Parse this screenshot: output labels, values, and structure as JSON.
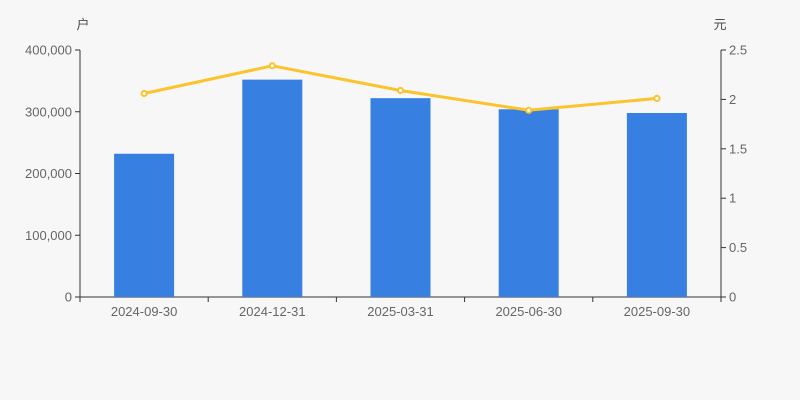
{
  "chart_data": {
    "type": "bar",
    "subtype": "dual-axis-bar-line",
    "categories": [
      "2024-09-30",
      "2024-12-31",
      "2025-03-31",
      "2025-06-30",
      "2025-09-30"
    ],
    "series": [
      {
        "name": "bar-series",
        "type": "bar",
        "axis": "left",
        "values": [
          232000,
          352000,
          322000,
          304000,
          298000
        ],
        "color": "#377fe1"
      },
      {
        "name": "line-series",
        "type": "line",
        "axis": "right",
        "values": [
          2.06,
          2.34,
          2.09,
          1.89,
          2.01
        ],
        "color": "#fbc32c",
        "marker": "hollow-circle",
        "marker_fill": "#ffffff"
      }
    ],
    "y_left": {
      "unit": "户",
      "min": 0,
      "max": 400000,
      "tick_labels": [
        "0",
        "100,000",
        "200,000",
        "300,000",
        "400,000"
      ]
    },
    "y_right": {
      "unit": "元",
      "min": 0,
      "max": 2.5,
      "tick_labels": [
        "0",
        "0.5",
        "1",
        "1.5",
        "2",
        "2.5"
      ]
    },
    "grid": false,
    "legend": null,
    "title": ""
  },
  "style": {
    "background": "#f7f7f7",
    "axis_color": "#333333",
    "tick_label_color": "#666666",
    "unit_label_color": "#4d4d4d"
  }
}
